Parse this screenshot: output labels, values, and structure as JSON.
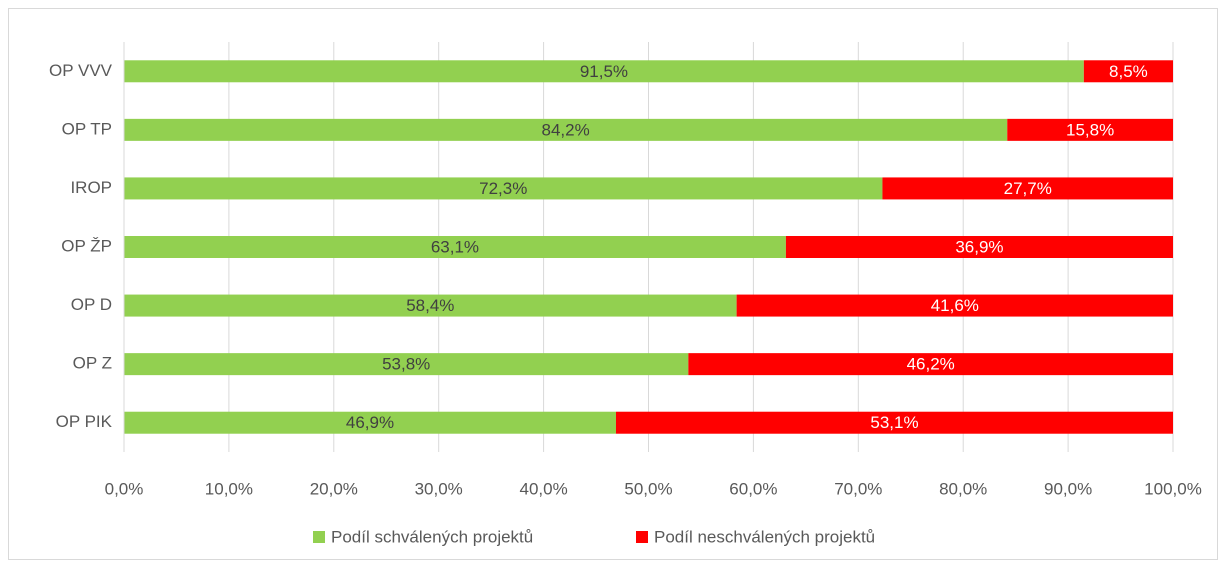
{
  "chart_data": {
    "type": "stacked_barh",
    "categories": [
      "OP VVV",
      "OP TP",
      "IROP",
      "OP ŽP",
      "OP D",
      "OP Z",
      "OP PIK"
    ],
    "series": [
      {
        "name": "Podíl schválených projektů",
        "color": "#92d050",
        "label_color": "#404040",
        "values": [
          91.5,
          84.2,
          72.3,
          63.1,
          58.4,
          53.8,
          46.9
        ],
        "value_labels": [
          "91,5%",
          "84,2%",
          "72,3%",
          "63,1%",
          "58,4%",
          "53,8%",
          "46,9%"
        ]
      },
      {
        "name": "Podíl neschválených projektů",
        "color": "#ff0000",
        "label_color": "#ffffff",
        "values": [
          8.5,
          15.8,
          27.7,
          36.9,
          41.6,
          46.2,
          53.1
        ],
        "value_labels": [
          "8,5%",
          "15,8%",
          "27,7%",
          "36,9%",
          "41,6%",
          "46,2%",
          "53,1%"
        ]
      }
    ],
    "xlim": [
      0,
      100
    ],
    "xticks": [
      {
        "value": 0,
        "label": "0,0%"
      },
      {
        "value": 10,
        "label": "10,0%"
      },
      {
        "value": 20,
        "label": "20,0%"
      },
      {
        "value": 30,
        "label": "30,0%"
      },
      {
        "value": 40,
        "label": "40,0%"
      },
      {
        "value": 50,
        "label": "50,0%"
      },
      {
        "value": 60,
        "label": "60,0%"
      },
      {
        "value": 70,
        "label": "70,0%"
      },
      {
        "value": 80,
        "label": "80,0%"
      },
      {
        "value": 90,
        "label": "90,0%"
      },
      {
        "value": 100,
        "label": "100,0%"
      }
    ],
    "grid": true,
    "legend": "bottom"
  }
}
